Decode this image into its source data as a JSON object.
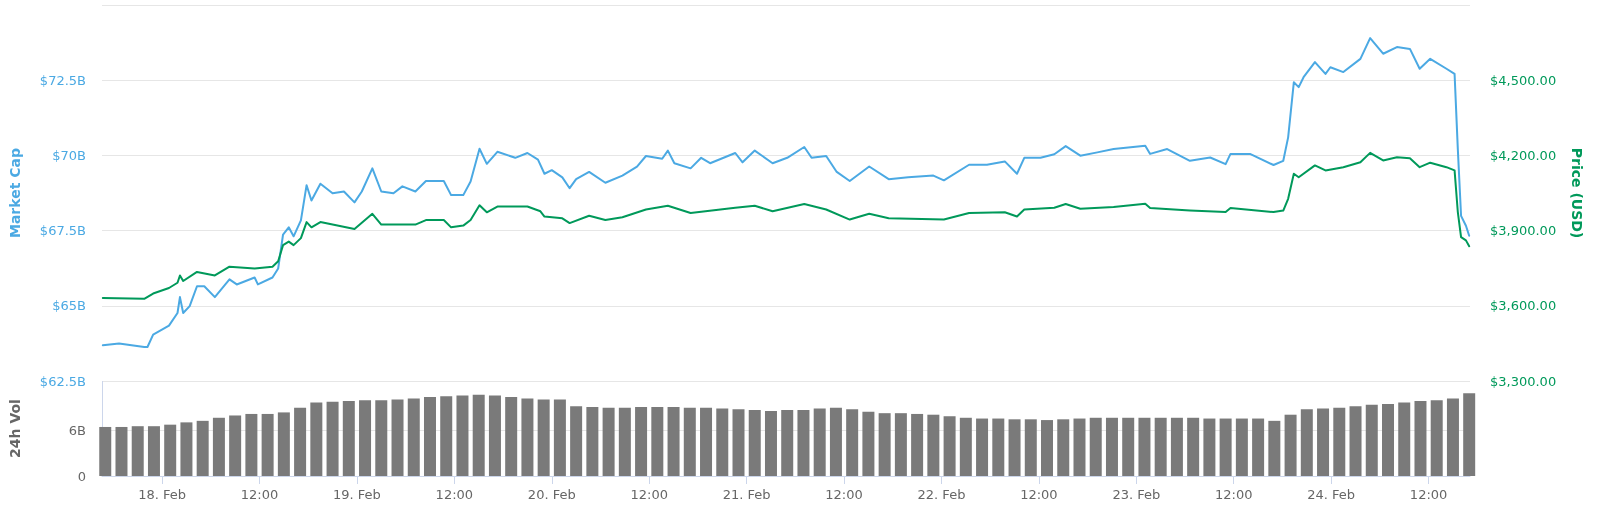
{
  "chart_data": [
    {
      "type": "line",
      "ylabel": "Market Cap",
      "y2label": "Price (USD)",
      "xlim": [
        "--02-17T16:36",
        "--02-24T17:06"
      ],
      "ylim": [
        62.5,
        75
      ],
      "yticks": [
        {
          "value": 62.5,
          "label": "$62.5B"
        },
        {
          "value": 65,
          "label": "$65B"
        },
        {
          "value": 67.5,
          "label": "$67.5B"
        },
        {
          "value": 70,
          "label": "$70B"
        },
        {
          "value": 72.5,
          "label": "$72.5B"
        },
        {
          "value": 75,
          "label": null
        }
      ],
      "y2lim": [
        3300,
        4800
      ],
      "y2ticks": [
        {
          "value": 3300,
          "label": "$3,300.00"
        },
        {
          "value": 3600,
          "label": "$3,600.00"
        },
        {
          "value": 3900,
          "label": "$3,900.00"
        },
        {
          "value": 4200,
          "label": "$4,200.00"
        },
        {
          "value": 4500,
          "label": "$4,500.00"
        }
      ],
      "grid": "y",
      "tick_labels": "y",
      "marker": "none",
      "line_style": "solid",
      "series": [
        {
          "color": "#4ba9e3",
          "x": [
            "--02-17T16:42",
            "--02-17T18:42",
            "--02-17T21:48",
            "--02-17T22:12",
            "--02-17T22:54",
            "--02-18T00:51",
            "--02-18T01:54",
            "--02-18T02:12",
            "--02-18T02:36",
            "--02-18T03:24",
            "--02-18T04:18",
            "--02-18T05:12",
            "--02-18T06:30",
            "--02-18T08:18",
            "--02-18T09:12",
            "--02-18T11:24",
            "--02-18T11:48",
            "--02-18T13:36",
            "--02-18T14:18",
            "--02-18T14:54",
            "--02-18T15:36",
            "--02-18T16:12",
            "--02-18T17:06",
            "--02-18T17:48",
            "--02-18T18:24",
            "--02-18T19:30",
            "--02-18T21:00",
            "--02-18T22:24",
            "--02-18T23:42",
            "--02-19T00:36",
            "--02-19T01:54",
            "--02-19T03:00",
            "--02-19T04:30",
            "--02-19T05:36",
            "--02-19T07:12",
            "--02-19T08:30",
            "--02-19T10:42",
            "--02-19T11:36",
            "--02-19T13:06",
            "--02-19T14:00",
            "--02-19T15:06",
            "--02-19T16:00",
            "--02-19T17:18",
            "--02-19T19:30",
            "--02-19T21:00",
            "--02-19T22:18",
            "--02-19T23:06",
            "--02-20T00:00",
            "--02-20T01:18",
            "--02-20T02:12",
            "--02-20T03:00",
            "--02-20T04:36",
            "--02-20T06:36",
            "--02-20T08:42",
            "--02-20T10:30",
            "--02-20T11:36",
            "--02-20T13:36",
            "--02-20T14:18",
            "--02-20T15:06",
            "--02-20T17:06",
            "--02-20T18:24",
            "--02-20T19:30",
            "--02-20T22:36",
            "--02-20T23:30",
            "--02-21T01:00",
            "--02-21T03:12",
            "--02-21T05:00",
            "--02-21T07:06",
            "--02-21T08:00",
            "--02-21T09:48",
            "--02-21T11:06",
            "--02-21T12:42",
            "--02-21T15:06",
            "--02-21T17:30",
            "--02-21T19:54",
            "--02-21T23:00",
            "--02-22T00:18",
            "--02-22T03:24",
            "--02-22T05:36",
            "--02-22T07:48",
            "--02-22T09:18",
            "--02-22T10:12",
            "--02-22T12:12",
            "--02-22T13:54",
            "--02-22T15:18",
            "--02-22T17:06",
            "--02-22T19:12",
            "--02-22T21:12",
            "--02-23T01:06",
            "--02-23T01:42",
            "--02-23T03:48",
            "--02-23T06:36",
            "--02-23T09:06",
            "--02-23T11:00",
            "--02-23T11:36",
            "--02-23T14:00",
            "--02-23T16:54",
            "--02-23T18:06",
            "--02-23T18:42",
            "--02-23T19:24",
            "--02-23T20:00",
            "--02-23T20:36",
            "--02-23T22:00",
            "--02-23T23:18",
            "--02-23T23:54",
            "--02-24T01:30",
            "--02-24T03:36",
            "--02-24T04:48",
            "--02-24T06:24",
            "--02-24T08:06",
            "--02-24T09:42",
            "--02-24T10:54",
            "--02-24T12:12",
            "--02-24T14:12",
            "--02-24T15:12",
            "--02-24T15:36",
            "--02-24T16:00",
            "--02-24T16:36",
            "--02-24T17:00"
          ],
          "values": [
            63.69,
            63.75,
            63.63,
            63.63,
            64.04,
            64.34,
            64.76,
            65.29,
            64.76,
            64.99,
            65.65,
            65.65,
            65.29,
            65.88,
            65.71,
            65.94,
            65.71,
            65.94,
            66.24,
            67.37,
            67.61,
            67.31,
            67.84,
            69.01,
            68.5,
            69.06,
            68.74,
            68.8,
            68.44,
            68.8,
            69.57,
            68.8,
            68.74,
            68.97,
            68.8,
            69.15,
            69.15,
            68.68,
            68.68,
            69.13,
            70.22,
            69.72,
            70.12,
            69.92,
            70.08,
            69.86,
            69.39,
            69.51,
            69.27,
            68.91,
            69.21,
            69.45,
            69.09,
            69.33,
            69.63,
            69.98,
            69.89,
            70.16,
            69.74,
            69.57,
            69.92,
            69.74,
            70.08,
            69.77,
            70.16,
            69.74,
            69.92,
            70.28,
            69.92,
            69.98,
            69.45,
            69.15,
            69.63,
            69.21,
            69.27,
            69.33,
            69.17,
            69.69,
            69.69,
            69.8,
            69.39,
            69.92,
            69.92,
            70.04,
            70.31,
            69.99,
            70.1,
            70.21,
            70.32,
            70.05,
            70.21,
            69.82,
            69.93,
            69.71,
            70.05,
            70.05,
            69.68,
            69.82,
            70.6,
            72.43,
            72.27,
            72.6,
            73.1,
            72.71,
            72.93,
            72.77,
            73.21,
            73.9,
            73.38,
            73.6,
            73.54,
            72.88,
            73.21,
            72.88,
            72.71,
            70.21,
            67.99,
            67.66,
            67.33
          ]
        },
        {
          "color": "#00995a",
          "axis": "y2",
          "x": [
            "--02-17T16:42",
            "--02-17T21:48",
            "--02-17T22:54",
            "--02-18T00:51",
            "--02-18T01:54",
            "--02-18T02:12",
            "--02-18T02:36",
            "--02-18T04:18",
            "--02-18T06:30",
            "--02-18T08:18",
            "--02-18T11:24",
            "--02-18T13:36",
            "--02-18T14:18",
            "--02-18T14:54",
            "--02-18T15:36",
            "--02-18T16:12",
            "--02-18T17:06",
            "--02-18T17:48",
            "--02-18T18:24",
            "--02-18T19:30",
            "--02-18T23:42",
            "--02-19T01:54",
            "--02-19T03:00",
            "--02-19T07:12",
            "--02-19T08:30",
            "--02-19T10:42",
            "--02-19T11:36",
            "--02-19T13:06",
            "--02-19T14:00",
            "--02-19T15:06",
            "--02-19T16:00",
            "--02-19T17:18",
            "--02-19T21:00",
            "--02-19T22:36",
            "--02-19T23:06",
            "--02-20T01:18",
            "--02-20T02:12",
            "--02-20T04:36",
            "--02-20T06:36",
            "--02-20T08:42",
            "--02-20T11:36",
            "--02-20T14:18",
            "--02-20T17:06",
            "--02-20T22:36",
            "--02-21T01:00",
            "--02-21T03:12",
            "--02-21T07:06",
            "--02-21T09:48",
            "--02-21T12:42",
            "--02-21T15:06",
            "--02-21T17:30",
            "--02-22T00:18",
            "--02-22T03:24",
            "--02-22T07:48",
            "--02-22T09:18",
            "--02-22T10:12",
            "--02-22T13:54",
            "--02-22T15:18",
            "--02-22T17:06",
            "--02-22T21:12",
            "--02-23T01:06",
            "--02-23T01:42",
            "--02-23T06:36",
            "--02-23T11:00",
            "--02-23T11:36",
            "--02-23T16:54",
            "--02-23T18:06",
            "--02-23T18:42",
            "--02-23T19:24",
            "--02-23T20:00",
            "--02-23T22:00",
            "--02-23T23:18",
            "--02-24T01:30",
            "--02-24T03:36",
            "--02-24T04:48",
            "--02-24T06:24",
            "--02-24T08:06",
            "--02-24T09:42",
            "--02-24T10:54",
            "--02-24T12:12",
            "--02-24T14:12",
            "--02-24T15:12",
            "--02-24T15:36",
            "--02-24T16:00",
            "--02-24T16:36",
            "--02-24T17:00"
          ],
          "values": [
            3631,
            3628,
            3649,
            3671,
            3692,
            3721,
            3699,
            3735,
            3721,
            3756,
            3749,
            3756,
            3778,
            3842,
            3856,
            3842,
            3870,
            3934,
            3913,
            3934,
            3906,
            3967,
            3924,
            3924,
            3942,
            3942,
            3913,
            3920,
            3942,
            4001,
            3973,
            3996,
            3996,
            3977,
            3956,
            3949,
            3930,
            3959,
            3942,
            3953,
            3984,
            3999,
            3970,
            3991,
            3999,
            3977,
            4006,
            3984,
            3944,
            3967,
            3949,
            3944,
            3970,
            3973,
            3956,
            3984,
            3991,
            4006,
            3987,
            3994,
            4007,
            3990,
            3980,
            3974,
            3990,
            3974,
            3980,
            4027,
            4127,
            4113,
            4160,
            4140,
            4153,
            4173,
            4210,
            4180,
            4193,
            4189,
            4153,
            4171,
            4153,
            4140,
            3974,
            3874,
            3861,
            3838
          ]
        }
      ]
    },
    {
      "type": "bar",
      "ylabel": "24h Vol",
      "xlim": [
        "--02-17T16:36",
        "--02-24T17:06"
      ],
      "xticks": [
        {
          "value": "--02-18",
          "label": "18. Feb"
        },
        {
          "value": "--02-18T12:00",
          "label": "12:00"
        },
        {
          "value": "--02-19",
          "label": "19. Feb"
        },
        {
          "value": "--02-19T12:00",
          "label": "12:00"
        },
        {
          "value": "--02-20",
          "label": "20. Feb"
        },
        {
          "value": "--02-20T12:00",
          "label": "12:00"
        },
        {
          "value": "--02-21",
          "label": "21. Feb"
        },
        {
          "value": "--02-21T12:00",
          "label": "12:00"
        },
        {
          "value": "--02-22",
          "label": "22. Feb"
        },
        {
          "value": "--02-22T12:00",
          "label": "12:00"
        },
        {
          "value": "--02-23",
          "label": "23. Feb"
        },
        {
          "value": "--02-23T12:00",
          "label": "12:00"
        },
        {
          "value": "--02-24",
          "label": "24. Feb"
        },
        {
          "value": "--02-24T12:00",
          "label": "12:00"
        }
      ],
      "ylim": [
        0,
        12.4
      ],
      "yticks": [
        0,
        {
          "value": 6,
          "label": "6B"
        },
        {
          "value": 12.4,
          "label": null
        }
      ],
      "grid": "y",
      "color": "#7a7a7a",
      "x": [
        "--02-17T17:00",
        "--02-17T19:00",
        "--02-17T21:00",
        "--02-17T23:00",
        "--02-18T01:00",
        "--02-18T03:00",
        "--02-18T05:00",
        "--02-18T07:00",
        "--02-18T09:00",
        "--02-18T11:00",
        "--02-18T13:00",
        "--02-18T15:00",
        "--02-18T17:00",
        "--02-18T19:00",
        "--02-18T21:00",
        "--02-18T23:00",
        "--02-19T01:00",
        "--02-19T03:00",
        "--02-19T05:00",
        "--02-19T07:00",
        "--02-19T09:00",
        "--02-19T11:00",
        "--02-19T13:00",
        "--02-19T15:00",
        "--02-19T17:00",
        "--02-19T19:00",
        "--02-19T21:00",
        "--02-19T23:00",
        "--02-20T01:00",
        "--02-20T03:00",
        "--02-20T05:00",
        "--02-20T07:00",
        "--02-20T09:00",
        "--02-20T11:00",
        "--02-20T13:00",
        "--02-20T15:00",
        "--02-20T17:00",
        "--02-20T19:00",
        "--02-20T21:00",
        "--02-20T23:00",
        "--02-21T01:00",
        "--02-21T03:00",
        "--02-21T05:00",
        "--02-21T07:00",
        "--02-21T09:00",
        "--02-21T11:00",
        "--02-21T13:00",
        "--02-21T15:00",
        "--02-21T17:00",
        "--02-21T19:00",
        "--02-21T21:00",
        "--02-21T23:00",
        "--02-22T01:00",
        "--02-22T03:00",
        "--02-22T05:00",
        "--02-22T07:00",
        "--02-22T09:00",
        "--02-22T11:00",
        "--02-22T13:00",
        "--02-22T15:00",
        "--02-22T17:00",
        "--02-22T19:00",
        "--02-22T21:00",
        "--02-22T23:00",
        "--02-23T01:00",
        "--02-23T03:00",
        "--02-23T05:00",
        "--02-23T07:00",
        "--02-23T09:00",
        "--02-23T11:00",
        "--02-23T13:00",
        "--02-23T15:00",
        "--02-23T17:00",
        "--02-23T19:00",
        "--02-23T21:00",
        "--02-23T23:00",
        "--02-24T01:00",
        "--02-24T03:00",
        "--02-24T05:00",
        "--02-24T07:00",
        "--02-24T09:00",
        "--02-24T11:00",
        "--02-24T13:00",
        "--02-24T15:00",
        "--02-24T17:00"
      ],
      "values": [
        6.4,
        6.4,
        6.5,
        6.5,
        6.7,
        7.0,
        7.2,
        7.6,
        7.9,
        8.1,
        8.1,
        8.3,
        8.9,
        9.6,
        9.7,
        9.8,
        9.9,
        9.9,
        10.0,
        10.1,
        10.3,
        10.4,
        10.5,
        10.6,
        10.5,
        10.3,
        10.1,
        10.0,
        10.0,
        9.1,
        9.0,
        8.9,
        8.9,
        9.0,
        9.0,
        9.0,
        8.9,
        8.9,
        8.8,
        8.7,
        8.6,
        8.5,
        8.6,
        8.6,
        8.8,
        8.9,
        8.7,
        8.4,
        8.2,
        8.2,
        8.1,
        8.0,
        7.8,
        7.6,
        7.5,
        7.5,
        7.4,
        7.4,
        7.3,
        7.4,
        7.5,
        7.6,
        7.6,
        7.6,
        7.6,
        7.6,
        7.6,
        7.6,
        7.5,
        7.5,
        7.5,
        7.5,
        7.2,
        8.0,
        8.7,
        8.8,
        8.9,
        9.1,
        9.3,
        9.4,
        9.6,
        9.8,
        9.9,
        10.1,
        10.8
      ]
    }
  ]
}
